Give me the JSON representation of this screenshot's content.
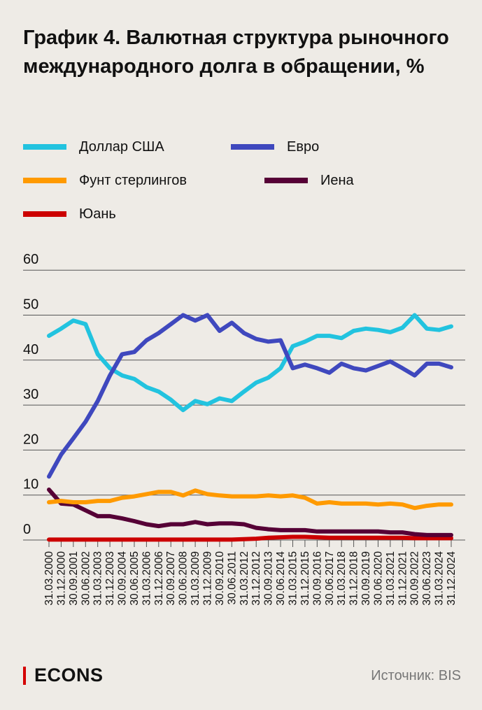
{
  "header": {
    "title": "График 4. Валютная структура рыночного международного долга в обращении, %"
  },
  "footer": {
    "logo": "ECONS",
    "source": "Источник: BIS"
  },
  "chart_data": {
    "type": "line",
    "title": "График 4. Валютная структура рыночного международного долга в обращении, %",
    "xlabel": "",
    "ylabel": "%",
    "ylim": [
      0,
      60
    ],
    "yticks": [
      "0",
      "10",
      "20",
      "30",
      "40",
      "50",
      "60"
    ],
    "grid": true,
    "legend_position": "top",
    "x": [
      "31.03.2000",
      "31.12.2000",
      "30.09.2001",
      "30.06.2002",
      "31.03.2003",
      "31.12.2003",
      "30.09.2004",
      "30.06.2005",
      "31.03.2006",
      "31.12.2006",
      "30.09.2007",
      "30.06.2008",
      "31.03.2009",
      "31.12.2009",
      "30.09.2010",
      "30.06.2011",
      "31.03.2012",
      "31.12.2012",
      "30.09.2013",
      "30.06.2014",
      "31.03.2015",
      "31.12.2015",
      "30.09.2016",
      "30.06.2017",
      "31.03.2018",
      "31.12.2018",
      "30.09.2019",
      "30.06.2020",
      "31.03.2021",
      "31.12.2021",
      "30.09.2022",
      "30.06.2023",
      "31.03.2024",
      "31.12.2024"
    ],
    "series": [
      {
        "name": "Доллар США",
        "color": "#22c3df",
        "values": [
          45.4,
          47,
          48.8,
          48,
          41.3,
          38.2,
          36.6,
          35.8,
          34,
          33,
          31.2,
          28.9,
          30.9,
          30.2,
          31.5,
          30.9,
          33,
          35,
          36.1,
          38.2,
          43.1,
          44.1,
          45.4,
          45.4,
          44.9,
          46.5,
          47,
          46.7,
          46.2,
          47.2,
          50,
          47,
          46.7,
          47.5
        ]
      },
      {
        "name": "Евро",
        "color": "#3f48be",
        "values": [
          14.1,
          19,
          22.6,
          26.3,
          30.9,
          36.6,
          41.3,
          41.8,
          44.4,
          46,
          48,
          50,
          48.8,
          50,
          46.5,
          48.3,
          46,
          44.7,
          44.1,
          44.4,
          38.2,
          39,
          38.2,
          37.2,
          39.2,
          38.2,
          37.7,
          38.7,
          39.7,
          38.2,
          36.6,
          39.2,
          39.2,
          38.4
        ]
      },
      {
        "name": "Фунт стерлингов",
        "color": "#ff9a00",
        "values": [
          8.4,
          8.7,
          8.4,
          8.4,
          8.7,
          8.7,
          9.4,
          9.7,
          10.2,
          10.7,
          10.7,
          9.9,
          11,
          10.2,
          9.9,
          9.7,
          9.7,
          9.7,
          9.9,
          9.7,
          9.9,
          9.4,
          8.1,
          8.4,
          8.1,
          8.1,
          8.1,
          7.9,
          8.1,
          7.9,
          7.1,
          7.6,
          7.9,
          7.9
        ]
      },
      {
        "name": "Иена",
        "color": "#560036",
        "values": [
          11.2,
          8.1,
          7.9,
          6.6,
          5.3,
          5.3,
          4.8,
          4.2,
          3.5,
          3.1,
          3.5,
          3.5,
          4,
          3.5,
          3.7,
          3.7,
          3.5,
          2.7,
          2.4,
          2.2,
          2.2,
          2.2,
          1.9,
          1.9,
          1.9,
          1.9,
          1.9,
          1.9,
          1.7,
          1.7,
          1.3,
          1.1,
          1.1,
          1.1
        ]
      },
      {
        "name": "Юань",
        "color": "#cc0000",
        "values": [
          0.1,
          0.1,
          0.1,
          0.1,
          0.1,
          0.1,
          0.1,
          0.1,
          0.1,
          0.1,
          0.1,
          0.1,
          0.1,
          0.1,
          0.1,
          0.1,
          0.2,
          0.3,
          0.5,
          0.6,
          0.7,
          0.7,
          0.6,
          0.5,
          0.5,
          0.5,
          0.5,
          0.5,
          0.5,
          0.5,
          0.4,
          0.4,
          0.4,
          0.4
        ]
      }
    ]
  }
}
